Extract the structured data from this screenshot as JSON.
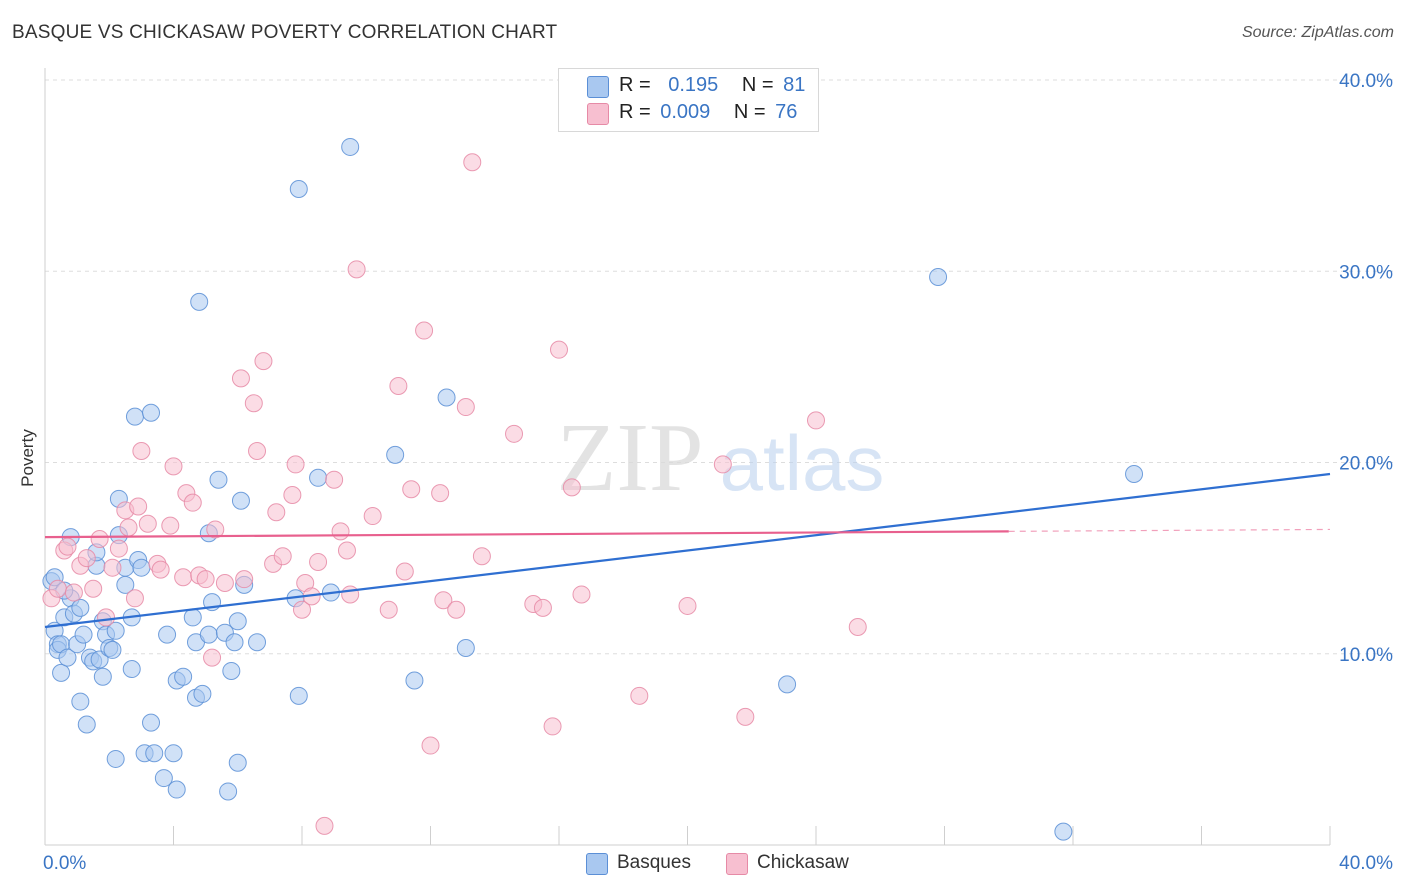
{
  "title": "BASQUE VS CHICKASAW POVERTY CORRELATION CHART",
  "source": "Source: ZipAtlas.com",
  "watermark": {
    "zip": "ZIP",
    "atlas": "atlas"
  },
  "legend": {
    "basques": {
      "r_label": "R =",
      "r_value": "0.195",
      "n_label": "N =",
      "n_value": "81"
    },
    "chickasaw": {
      "r_label": "R =",
      "r_value": "0.009",
      "n_label": "N =",
      "n_value": "76"
    }
  },
  "colors": {
    "basques_fill": "#a9c8f0",
    "basques_stroke": "#5b8fd6",
    "basques_line": "#2f6fd1",
    "chickasaw_fill": "#f7bfd0",
    "chickasaw_stroke": "#e68aa6",
    "chickasaw_line": "#e8608e",
    "axis_label": "#3a75c4",
    "grid": "#dddddd"
  },
  "chart_data": {
    "type": "scatter",
    "title": "BASQUE VS CHICKASAW POVERTY CORRELATION CHART",
    "xlabel": "",
    "ylabel": "Poverty",
    "xlim": [
      0,
      40
    ],
    "ylim": [
      0,
      40
    ],
    "x_ticks": [
      "0.0%",
      "40.0%"
    ],
    "y_ticks": [
      "10.0%",
      "20.0%",
      "30.0%",
      "40.0%"
    ],
    "y_tick_values": [
      10,
      20,
      30,
      40
    ],
    "grid": true,
    "legend_position": "bottom",
    "series": [
      {
        "name": "Basques",
        "trend": {
          "x": [
            0,
            40
          ],
          "y": [
            11.4,
            19.4
          ]
        },
        "points": [
          [
            0.2,
            13.8
          ],
          [
            0.3,
            11.2
          ],
          [
            0.4,
            10.5
          ],
          [
            0.4,
            10.2
          ],
          [
            0.5,
            10.5
          ],
          [
            0.5,
            9.0
          ],
          [
            0.6,
            11.9
          ],
          [
            0.7,
            9.8
          ],
          [
            0.8,
            16.1
          ],
          [
            0.8,
            12.9
          ],
          [
            0.9,
            12.1
          ],
          [
            1.0,
            10.5
          ],
          [
            1.1,
            12.4
          ],
          [
            1.1,
            7.5
          ],
          [
            1.2,
            11.0
          ],
          [
            1.3,
            6.3
          ],
          [
            1.4,
            9.8
          ],
          [
            1.5,
            9.6
          ],
          [
            1.6,
            14.6
          ],
          [
            1.6,
            15.3
          ],
          [
            1.7,
            9.7
          ],
          [
            1.8,
            11.7
          ],
          [
            1.8,
            8.8
          ],
          [
            1.9,
            11.0
          ],
          [
            2.0,
            10.3
          ],
          [
            2.1,
            10.2
          ],
          [
            2.2,
            11.2
          ],
          [
            2.2,
            4.5
          ],
          [
            2.3,
            18.1
          ],
          [
            2.3,
            16.2
          ],
          [
            2.5,
            14.5
          ],
          [
            2.5,
            13.6
          ],
          [
            2.7,
            11.9
          ],
          [
            2.7,
            9.2
          ],
          [
            2.8,
            22.4
          ],
          [
            2.9,
            14.9
          ],
          [
            3.0,
            14.5
          ],
          [
            3.1,
            4.8
          ],
          [
            3.3,
            22.6
          ],
          [
            3.3,
            6.4
          ],
          [
            3.4,
            4.8
          ],
          [
            3.7,
            3.5
          ],
          [
            3.8,
            11.0
          ],
          [
            4.0,
            4.8
          ],
          [
            4.1,
            8.6
          ],
          [
            4.1,
            2.9
          ],
          [
            4.3,
            8.8
          ],
          [
            4.6,
            11.9
          ],
          [
            4.7,
            7.7
          ],
          [
            4.7,
            10.6
          ],
          [
            4.8,
            28.4
          ],
          [
            4.9,
            7.9
          ],
          [
            5.1,
            11.0
          ],
          [
            5.1,
            16.3
          ],
          [
            5.2,
            12.7
          ],
          [
            5.4,
            19.1
          ],
          [
            5.6,
            11.1
          ],
          [
            5.7,
            2.8
          ],
          [
            5.8,
            9.1
          ],
          [
            5.9,
            10.6
          ],
          [
            6.0,
            11.7
          ],
          [
            6.0,
            4.3
          ],
          [
            6.1,
            18.0
          ],
          [
            6.2,
            13.6
          ],
          [
            6.6,
            10.6
          ],
          [
            7.8,
            12.9
          ],
          [
            7.9,
            7.8
          ],
          [
            7.9,
            34.3
          ],
          [
            8.5,
            19.2
          ],
          [
            8.9,
            13.2
          ],
          [
            9.5,
            36.5
          ],
          [
            10.9,
            20.4
          ],
          [
            11.5,
            8.6
          ],
          [
            12.5,
            23.4
          ],
          [
            13.1,
            10.3
          ],
          [
            23.1,
            8.4
          ],
          [
            27.8,
            29.7
          ],
          [
            31.7,
            0.7
          ],
          [
            33.9,
            19.4
          ],
          [
            0.3,
            14.0
          ],
          [
            0.6,
            13.3
          ]
        ]
      },
      {
        "name": "Chickasaw",
        "trend": {
          "x": [
            0,
            30
          ],
          "y": [
            16.1,
            16.4
          ],
          "dashed_to": 40
        },
        "points": [
          [
            0.2,
            12.9
          ],
          [
            0.4,
            13.4
          ],
          [
            0.6,
            15.4
          ],
          [
            0.7,
            15.6
          ],
          [
            0.9,
            13.2
          ],
          [
            1.1,
            14.6
          ],
          [
            1.3,
            15.0
          ],
          [
            1.5,
            13.4
          ],
          [
            1.7,
            16.0
          ],
          [
            1.9,
            11.9
          ],
          [
            2.1,
            14.5
          ],
          [
            2.3,
            15.5
          ],
          [
            2.5,
            17.5
          ],
          [
            2.6,
            16.6
          ],
          [
            2.8,
            12.9
          ],
          [
            2.9,
            17.7
          ],
          [
            3.0,
            20.6
          ],
          [
            3.2,
            16.8
          ],
          [
            3.5,
            14.7
          ],
          [
            3.6,
            14.4
          ],
          [
            3.9,
            16.7
          ],
          [
            4.0,
            19.8
          ],
          [
            4.3,
            14.0
          ],
          [
            4.4,
            18.4
          ],
          [
            4.6,
            17.9
          ],
          [
            4.8,
            14.1
          ],
          [
            5.0,
            13.9
          ],
          [
            5.2,
            9.8
          ],
          [
            5.3,
            16.5
          ],
          [
            5.6,
            13.7
          ],
          [
            6.1,
            24.4
          ],
          [
            6.2,
            13.9
          ],
          [
            6.5,
            23.1
          ],
          [
            6.6,
            20.6
          ],
          [
            6.8,
            25.3
          ],
          [
            7.1,
            14.7
          ],
          [
            7.2,
            17.4
          ],
          [
            7.4,
            15.1
          ],
          [
            7.7,
            18.3
          ],
          [
            7.8,
            19.9
          ],
          [
            8.0,
            12.3
          ],
          [
            8.1,
            13.7
          ],
          [
            8.3,
            13.0
          ],
          [
            8.5,
            14.8
          ],
          [
            8.7,
            1.0
          ],
          [
            9.0,
            19.1
          ],
          [
            9.2,
            16.4
          ],
          [
            9.4,
            15.4
          ],
          [
            9.5,
            13.1
          ],
          [
            9.7,
            30.1
          ],
          [
            10.2,
            17.2
          ],
          [
            10.7,
            12.3
          ],
          [
            11.0,
            24.0
          ],
          [
            11.2,
            14.3
          ],
          [
            11.4,
            18.6
          ],
          [
            11.8,
            26.9
          ],
          [
            12.0,
            5.2
          ],
          [
            12.3,
            18.4
          ],
          [
            12.4,
            12.8
          ],
          [
            12.8,
            12.3
          ],
          [
            13.1,
            22.9
          ],
          [
            13.3,
            35.7
          ],
          [
            13.6,
            15.1
          ],
          [
            14.6,
            21.5
          ],
          [
            15.2,
            12.6
          ],
          [
            15.5,
            12.4
          ],
          [
            15.8,
            6.2
          ],
          [
            16.0,
            25.9
          ],
          [
            16.4,
            18.7
          ],
          [
            16.7,
            13.1
          ],
          [
            18.5,
            7.8
          ],
          [
            20.0,
            12.5
          ],
          [
            21.1,
            19.9
          ],
          [
            21.8,
            6.7
          ],
          [
            24.0,
            22.2
          ],
          [
            25.3,
            11.4
          ]
        ]
      }
    ]
  }
}
